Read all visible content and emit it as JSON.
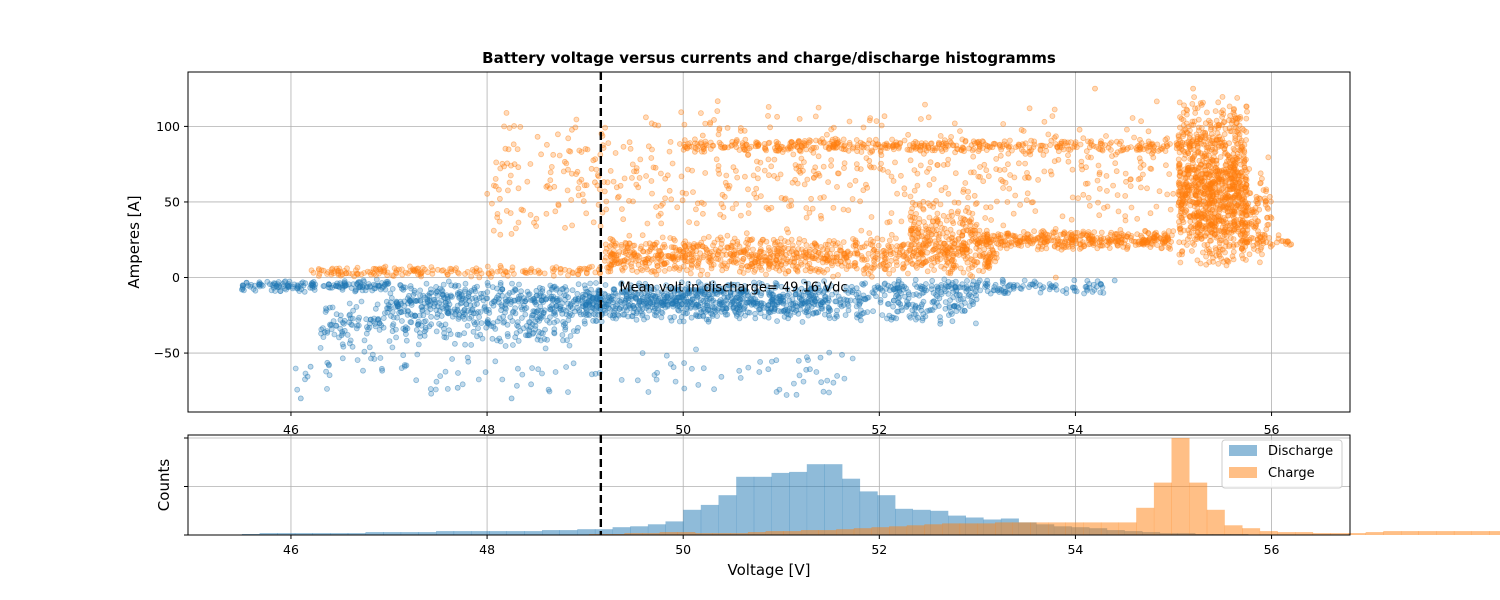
{
  "chart_data": [
    {
      "type": "scatter",
      "title": "Battery voltage versus currents and charge/discharge histogramms",
      "xlabel": "",
      "ylabel": "Amperes [A]",
      "xlim": [
        44.95,
        56.8
      ],
      "ylim": [
        -89,
        136
      ],
      "xticks": [
        46,
        48,
        50,
        52,
        54,
        56
      ],
      "yticks": [
        -50,
        0,
        50,
        100
      ],
      "grid": true,
      "mean_line": {
        "x": 49.16,
        "style": "dashed",
        "color": "#000000"
      },
      "annotation": {
        "text": "Mean volt in discharge= 49.16 Vdc",
        "x": 49.35,
        "y": -6
      },
      "series": [
        {
          "name": "Discharge",
          "color": "#1f77b4",
          "clusters": [
            {
              "x_range": [
                45.5,
                47.0
              ],
              "y_range": [
                -10,
                -1
              ],
              "n": 160
            },
            {
              "x_range": [
                46.3,
                49.0
              ],
              "y_range": [
                -48,
                -12
              ],
              "n": 320
            },
            {
              "x_range": [
                47.0,
                51.5
              ],
              "y_range": [
                -28,
                -2
              ],
              "n": 800
            },
            {
              "x_range": [
                49.0,
                53.0
              ],
              "y_range": [
                -32,
                -1
              ],
              "n": 520
            },
            {
              "x_range": [
                52.0,
                54.3
              ],
              "y_range": [
                -12,
                -1
              ],
              "n": 160
            },
            {
              "x_range": [
                46.0,
                51.8
              ],
              "y_range": [
                -80,
                -45
              ],
              "n": 110
            }
          ],
          "points": [
            {
              "x": 45.5,
              "y": -8
            },
            {
              "x": 46.1,
              "y": -80
            },
            {
              "x": 48.25,
              "y": -80
            },
            {
              "x": 47.7,
              "y": -73
            },
            {
              "x": 51.4,
              "y": -53
            },
            {
              "x": 46.2,
              "y": -59
            },
            {
              "x": 54.4,
              "y": -2
            },
            {
              "x": 53.8,
              "y": -5
            }
          ]
        },
        {
          "name": "Charge",
          "color": "#ff7f0e",
          "clusters": [
            {
              "x_range": [
                46.2,
                49.2
              ],
              "y_range": [
                0,
                8
              ],
              "n": 180
            },
            {
              "x_range": [
                49.2,
                53.2
              ],
              "y_range": [
                0,
                28
              ],
              "n": 900
            },
            {
              "x_range": [
                50.0,
                55.2
              ],
              "y_range": [
                82,
                92
              ],
              "n": 420
            },
            {
              "x_range": [
                53.0,
                55.0
              ],
              "y_range": [
                18,
                32
              ],
              "n": 380
            },
            {
              "x_range": [
                55.05,
                55.75
              ],
              "y_range": [
                5,
                122
              ],
              "n": 900
            },
            {
              "x_range": [
                55.2,
                56.0
              ],
              "y_range": [
                5,
                80
              ],
              "n": 240
            },
            {
              "x_range": [
                48.0,
                55.0
              ],
              "y_range": [
                20,
                118
              ],
              "n": 600
            },
            {
              "x_range": [
                52.3,
                53.0
              ],
              "y_range": [
                10,
                52
              ],
              "n": 160
            },
            {
              "x_range": [
                55.6,
                56.2
              ],
              "y_range": [
                20,
                30
              ],
              "n": 40
            }
          ],
          "points": [
            {
              "x": 48.35,
              "y": 45
            },
            {
              "x": 49.1,
              "y": 63
            },
            {
              "x": 50.2,
              "y": 94
            },
            {
              "x": 54.2,
              "y": 125
            },
            {
              "x": 55.2,
              "y": 125
            },
            {
              "x": 56.2,
              "y": 22
            },
            {
              "x": 49.2,
              "y": 57
            },
            {
              "x": 53.8,
              "y": 0
            }
          ]
        }
      ]
    },
    {
      "type": "bar",
      "subtype": "histogram",
      "title": "",
      "xlabel": "Voltage [V]",
      "ylabel": "Counts",
      "xlim": [
        44.95,
        56.8
      ],
      "xticks": [
        46,
        48,
        50,
        52,
        54,
        56
      ],
      "ytick_labels": [],
      "ylim": [
        0,
        1
      ],
      "grid": true,
      "legend": {
        "position": "upper right",
        "entries": [
          "Discharge",
          "Charge"
        ]
      },
      "mean_line": {
        "x": 49.16,
        "style": "dashed",
        "color": "#000000"
      },
      "series": [
        {
          "name": "Discharge",
          "color": "#1f77b4",
          "alpha": 0.5,
          "bin_start": 45.5,
          "bin_width": 0.18,
          "values": [
            0.01,
            0.02,
            0.02,
            0.02,
            0.02,
            0.02,
            0.02,
            0.03,
            0.03,
            0.03,
            0.03,
            0.04,
            0.04,
            0.04,
            0.04,
            0.04,
            0.04,
            0.05,
            0.05,
            0.06,
            0.06,
            0.08,
            0.09,
            0.11,
            0.14,
            0.26,
            0.31,
            0.41,
            0.6,
            0.6,
            0.64,
            0.65,
            0.73,
            0.73,
            0.58,
            0.45,
            0.41,
            0.27,
            0.26,
            0.25,
            0.2,
            0.18,
            0.16,
            0.17,
            0.13,
            0.11,
            0.09,
            0.08,
            0.07,
            0.05,
            0.04,
            0.03,
            0.02,
            0.02,
            0.01,
            0.01,
            0.01,
            0.005,
            0.003,
            0.002,
            0.001,
            0.001,
            0.0,
            0.0
          ]
        },
        {
          "name": "Charge",
          "color": "#ff7f0e",
          "alpha": 0.5,
          "bin_start": 45.8,
          "bin_width": 0.18,
          "values": [
            0.0,
            0.0,
            0.0,
            0.0,
            0.0,
            0.0,
            0.0,
            0.0,
            0.0,
            0.0,
            0.0,
            0.0,
            0.0,
            0.0,
            0.0,
            0.0,
            0.0,
            0.0,
            0.01,
            0.01,
            0.02,
            0.02,
            0.03,
            0.03,
            0.02,
            0.02,
            0.02,
            0.03,
            0.04,
            0.04,
            0.05,
            0.05,
            0.06,
            0.07,
            0.08,
            0.09,
            0.1,
            0.11,
            0.12,
            0.12,
            0.12,
            0.13,
            0.13,
            0.13,
            0.13,
            0.13,
            0.13,
            0.13,
            0.13,
            0.28,
            0.54,
            1.0,
            0.54,
            0.26,
            0.1,
            0.07,
            0.04,
            0.03,
            0.03,
            0.02,
            0.02,
            0.02,
            0.03,
            0.04,
            0.04,
            0.04,
            0.04,
            0.04,
            0.04,
            0.04,
            0.04,
            0.04,
            0.04,
            0.04,
            0.04,
            0.04,
            0.05,
            0.1,
            0.2,
            0.2,
            0.15,
            0.05,
            0.03,
            0.01
          ]
        }
      ]
    }
  ]
}
